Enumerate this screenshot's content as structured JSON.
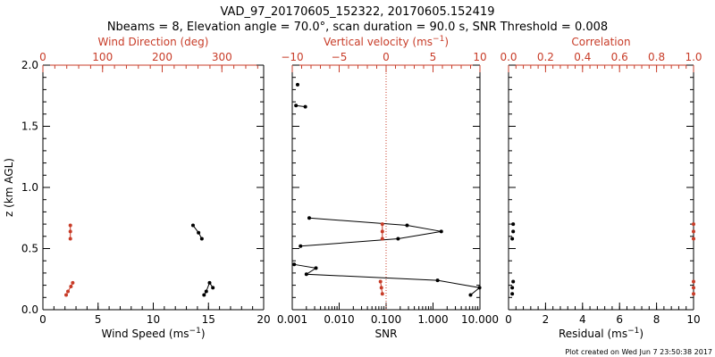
{
  "header": {
    "title": "VAD_97_20170605_152322, 20170605.152419",
    "subtitle": "Nbeams = 8, Elevation angle = 70.0°, scan duration = 90.0 s, SNR Threshold = 0.008"
  },
  "footer": {
    "created": "Plot created on Wed Jun  7 23:50:38 2017"
  },
  "colors": {
    "axis": "#000000",
    "accent": "#c83c28",
    "dots": "#000000"
  },
  "chart_data": [
    {
      "type": "scatter",
      "panel": "wind",
      "title": "",
      "xlabel": "Wind Speed (ms",
      "xlabel_sup": "−1",
      "xlabel_tail": ")",
      "ylabel": "z (km AGL)",
      "xlim": [
        0,
        20
      ],
      "ylim": [
        0,
        2
      ],
      "x_ticks": [
        {
          "v": 0,
          "label": "0"
        },
        {
          "v": 5,
          "label": "5"
        },
        {
          "v": 10,
          "label": "10"
        },
        {
          "v": 15,
          "label": "15"
        },
        {
          "v": 20,
          "label": "20"
        }
      ],
      "y_ticks": [
        {
          "v": 0,
          "label": "0.0"
        },
        {
          "v": 0.5,
          "label": "0.5"
        },
        {
          "v": 1,
          "label": "1.0"
        },
        {
          "v": 1.5,
          "label": "1.5"
        },
        {
          "v": 2,
          "label": "2.0"
        }
      ],
      "top_axis": {
        "label": "Wind Direction (deg)",
        "lim": [
          0,
          370
        ],
        "ticks": [
          {
            "v": 0,
            "label": "0"
          },
          {
            "v": 100,
            "label": "100"
          },
          {
            "v": 200,
            "label": "200"
          },
          {
            "v": 300,
            "label": "300"
          }
        ]
      },
      "series": [
        {
          "name": "Wind speed",
          "color": "#000000",
          "line": true,
          "segments": [
            [
              [
                13.6,
                0.69
              ],
              [
                14.1,
                0.63
              ],
              [
                14.4,
                0.58
              ]
            ],
            [
              [
                15.4,
                0.18
              ],
              [
                15.1,
                0.22
              ],
              [
                14.8,
                0.15
              ],
              [
                14.6,
                0.12
              ]
            ]
          ]
        },
        {
          "name": "Wind direction",
          "color": "#c83c28",
          "axis": "top",
          "line": true,
          "segments": [
            [
              [
                46,
                0.69
              ],
              [
                46,
                0.64
              ],
              [
                46,
                0.58
              ]
            ],
            [
              [
                50,
                0.22
              ],
              [
                47,
                0.19
              ],
              [
                42,
                0.15
              ],
              [
                39,
                0.12
              ]
            ]
          ]
        }
      ]
    },
    {
      "type": "scatter",
      "panel": "snr",
      "xlabel": "SNR",
      "xscale": "log",
      "xlim": [
        0.001,
        10
      ],
      "ylim": [
        0,
        2
      ],
      "x_ticks": [
        {
          "v": 0.001,
          "label": "0.001"
        },
        {
          "v": 0.01,
          "label": "0.010"
        },
        {
          "v": 0.1,
          "label": "0.100"
        },
        {
          "v": 1,
          "label": "1.000"
        },
        {
          "v": 10,
          "label": "10.000"
        }
      ],
      "top_axis": {
        "label": "Vertical velocity (ms",
        "label_sup": "−1",
        "label_tail": ")",
        "lim": [
          -10,
          10
        ],
        "ticks": [
          {
            "v": -10,
            "label": "−10"
          },
          {
            "v": -5,
            "label": "−5"
          },
          {
            "v": 0,
            "label": "0"
          },
          {
            "v": 5,
            "label": "5"
          },
          {
            "v": 10,
            "label": "10"
          }
        ],
        "zero_line": 0
      },
      "series": [
        {
          "name": "SNR",
          "color": "#000000",
          "line": true,
          "segments": [
            [
              [
                0.0013,
                1.84
              ]
            ],
            [
              [
                0.0012,
                1.67
              ],
              [
                0.0019,
                1.66
              ]
            ],
            [
              [
                0.0023,
                0.75
              ],
              [
                0.28,
                0.69
              ],
              [
                1.5,
                0.64
              ],
              [
                0.18,
                0.58
              ],
              [
                0.0015,
                0.52
              ]
            ],
            [
              [
                0.0011,
                0.37
              ],
              [
                0.0032,
                0.34
              ],
              [
                0.002,
                0.29
              ],
              [
                1.25,
                0.24
              ],
              [
                9.8,
                0.18
              ],
              [
                6.3,
                0.12
              ]
            ]
          ]
        },
        {
          "name": "Vertical velocity",
          "color": "#c83c28",
          "axis": "top",
          "line": true,
          "segments": [
            [
              [
                -0.4,
                0.7
              ],
              [
                -0.4,
                0.64
              ],
              [
                -0.4,
                0.58
              ]
            ],
            [
              [
                -0.6,
                0.23
              ],
              [
                -0.5,
                0.18
              ],
              [
                -0.4,
                0.13
              ]
            ]
          ]
        }
      ]
    },
    {
      "type": "scatter",
      "panel": "residual",
      "xlabel": "Residual (ms",
      "xlabel_sup": "−1",
      "xlabel_tail": ")",
      "xlim": [
        0,
        10
      ],
      "ylim": [
        0,
        2
      ],
      "x_ticks": [
        {
          "v": 0,
          "label": "0"
        },
        {
          "v": 2,
          "label": "2"
        },
        {
          "v": 4,
          "label": "4"
        },
        {
          "v": 6,
          "label": "6"
        },
        {
          "v": 8,
          "label": "8"
        },
        {
          "v": 10,
          "label": "10"
        }
      ],
      "top_axis": {
        "label": "Correlation",
        "lim": [
          0,
          1
        ],
        "ticks": [
          {
            "v": 0,
            "label": "0.0"
          },
          {
            "v": 0.2,
            "label": "0.2"
          },
          {
            "v": 0.4,
            "label": "0.4"
          },
          {
            "v": 0.6,
            "label": "0.6"
          },
          {
            "v": 0.8,
            "label": "0.8"
          },
          {
            "v": 1,
            "label": "1.0"
          }
        ]
      },
      "series": [
        {
          "name": "Residual",
          "color": "#000000",
          "line": false,
          "points": [
            [
              0.25,
              0.7
            ],
            [
              0.25,
              0.64
            ],
            [
              0.2,
              0.58
            ],
            [
              0.25,
              0.23
            ],
            [
              0.2,
              0.18
            ],
            [
              0.2,
              0.13
            ]
          ]
        },
        {
          "name": "Correlation",
          "color": "#c83c28",
          "axis": "top",
          "line": false,
          "points": [
            [
              1.0,
              0.7
            ],
            [
              1.0,
              0.64
            ],
            [
              1.0,
              0.58
            ],
            [
              1.0,
              0.23
            ],
            [
              1.0,
              0.18
            ],
            [
              1.0,
              0.13
            ]
          ]
        }
      ]
    }
  ]
}
